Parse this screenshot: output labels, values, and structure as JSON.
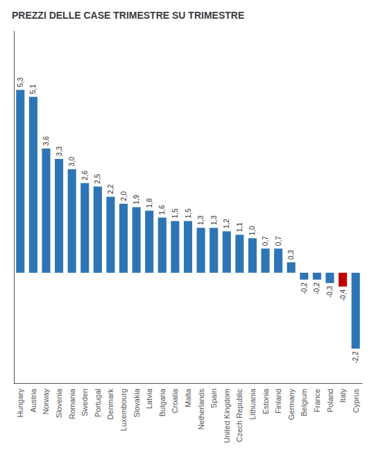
{
  "chart_data": {
    "type": "bar",
    "title": "PREZZI DELLE CASE TRIMESTRE SU TRIMESTRE",
    "categories": [
      "Hungary",
      "Austria",
      "Norway",
      "Slovenia",
      "Romania",
      "Sweden",
      "Portugal",
      "Denmark",
      "Luxembourg",
      "Slovakia",
      "Latvia",
      "Bulgaria",
      "Croatia",
      "Malta",
      "Netherlands",
      "Spain",
      "United Kingdom",
      "Czech Republic",
      "Lithuania",
      "Estonia",
      "Finland",
      "Germany",
      "Belgium",
      "France",
      "Poland",
      "Italy",
      "Cyprus"
    ],
    "values": [
      5.3,
      5.1,
      3.6,
      3.3,
      3.0,
      2.6,
      2.5,
      2.2,
      2.0,
      1.9,
      1.8,
      1.6,
      1.5,
      1.5,
      1.3,
      1.3,
      1.2,
      1.1,
      1.0,
      0.7,
      0.7,
      0.3,
      -0.2,
      -0.2,
      -0.3,
      -0.4,
      -2.2
    ],
    "value_labels": [
      "5,3",
      "5,1",
      "3,6",
      "3,3",
      "3,0",
      "2,6",
      "2,5",
      "2,2",
      "2,0",
      "1,9",
      "1,8",
      "1,6",
      "1,5",
      "1,5",
      "1,3",
      "1,3",
      "1,2",
      "1,1",
      "1,0",
      "0,7",
      "0,7",
      "0,3",
      "-0,2",
      "-0,2",
      "-0,3",
      "-0,4",
      "-2,2"
    ],
    "colors": [
      "#2e75b6",
      "#2e75b6",
      "#2e75b6",
      "#2e75b6",
      "#2e75b6",
      "#2e75b6",
      "#2e75b6",
      "#2e75b6",
      "#2e75b6",
      "#2e75b6",
      "#2e75b6",
      "#2e75b6",
      "#2e75b6",
      "#2e75b6",
      "#2e75b6",
      "#2e75b6",
      "#2e75b6",
      "#2e75b6",
      "#2e75b6",
      "#2e75b6",
      "#2e75b6",
      "#2e75b6",
      "#2e75b6",
      "#2e75b6",
      "#2e75b6",
      "#c00000",
      "#2e75b6"
    ],
    "ylim": [
      -3.2,
      7.0
    ],
    "grid": false,
    "data_labels": true,
    "tick_labels": "x"
  }
}
